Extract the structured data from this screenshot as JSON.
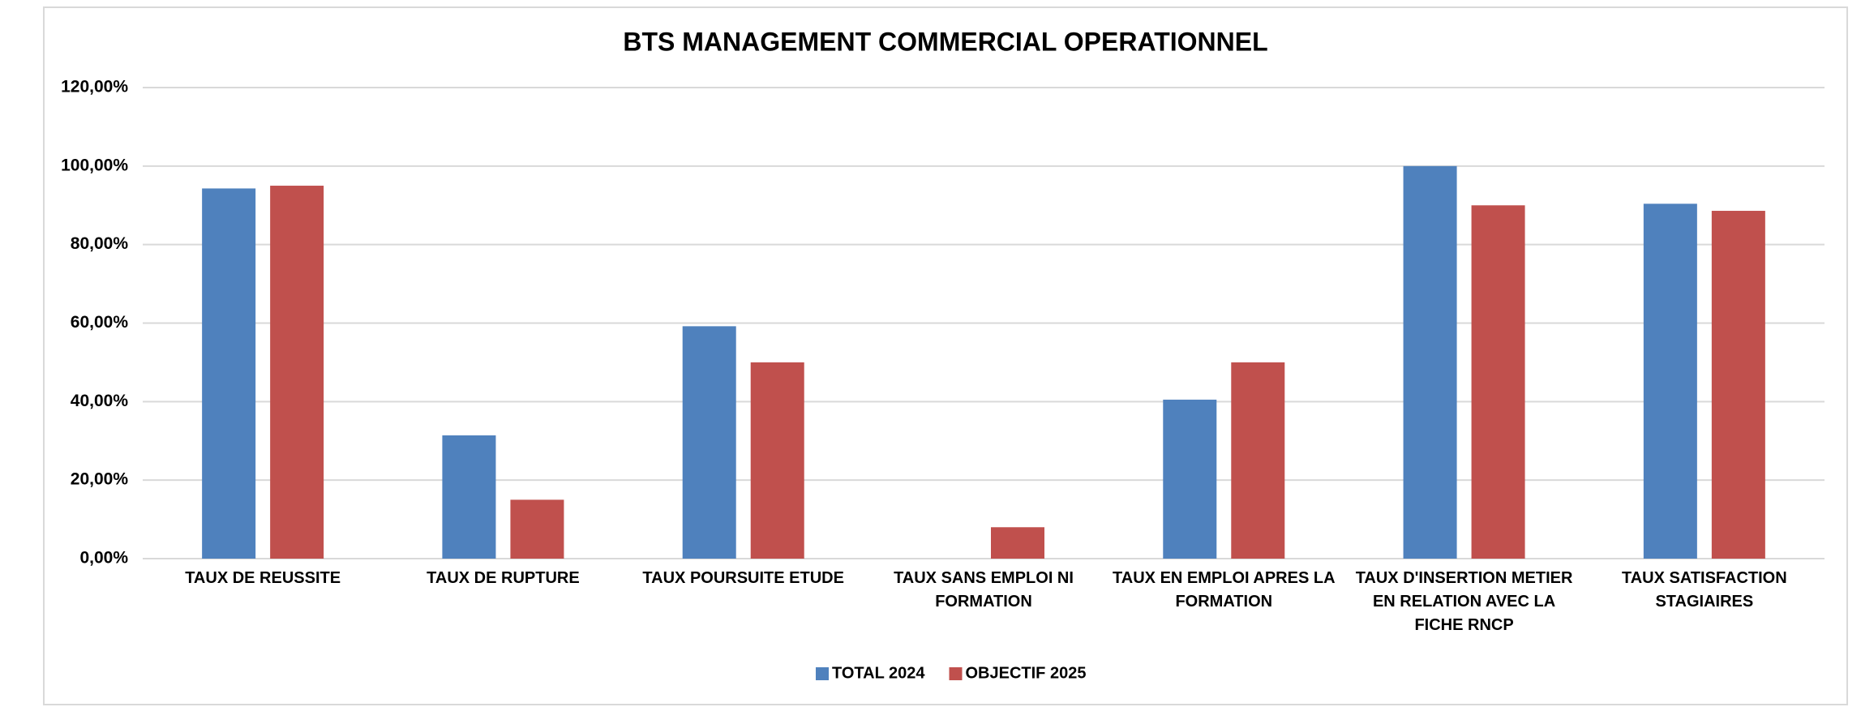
{
  "chart_data": {
    "type": "bar",
    "title": "BTS MANAGEMENT COMMERCIAL OPERATIONNEL",
    "categories": [
      "TAUX DE REUSSITE",
      "TAUX DE RUPTURE",
      "TAUX POURSUITE ETUDE",
      "TAUX SANS EMPLOI NI FORMATION",
      "TAUX EN EMPLOI APRES LA FORMATION",
      "TAUX D'INSERTION METIER EN RELATION AVEC LA FICHE RNCP",
      "TAUX SATISFACTION STAGIAIRES"
    ],
    "series": [
      {
        "name": "TOTAL 2024",
        "color": "#4f81bd",
        "values": [
          94.3,
          31.4,
          59.2,
          null,
          40.5,
          100,
          90.4
        ]
      },
      {
        "name": "OBJECTIF 2025",
        "color": "#c0504d",
        "values": [
          95,
          15,
          50,
          8,
          50,
          90,
          88.6
        ]
      }
    ],
    "ylim": [
      0,
      120
    ],
    "yticks": [
      {
        "value": 0,
        "label": "0,00%"
      },
      {
        "value": 20,
        "label": "20,00%"
      },
      {
        "value": 40,
        "label": "40,00%"
      },
      {
        "value": 60,
        "label": "60,00%"
      },
      {
        "value": 80,
        "label": "80,00%"
      },
      {
        "value": 100,
        "label": "100,00%"
      },
      {
        "value": 120,
        "label": "120,00%"
      }
    ],
    "grid": true,
    "legend": "bottom"
  }
}
